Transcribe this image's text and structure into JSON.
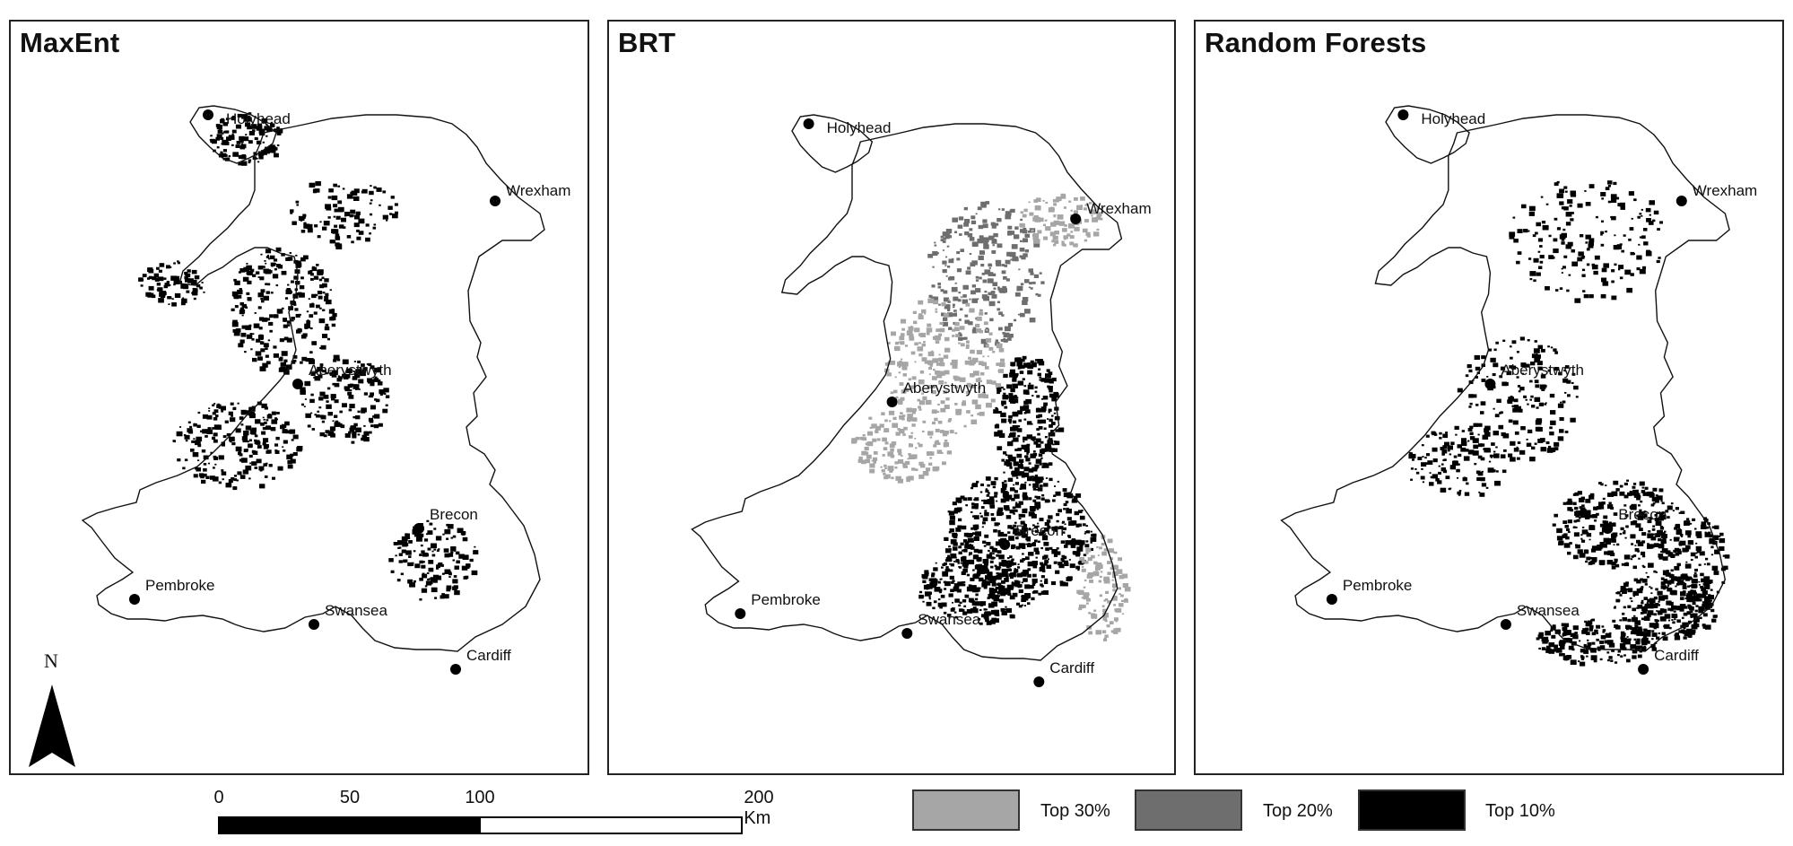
{
  "panels": [
    {
      "title": "MaxEnt",
      "model": "maxent"
    },
    {
      "title": "BRT",
      "model": "brt"
    },
    {
      "title": "Random Forests",
      "model": "rf"
    }
  ],
  "towns": [
    "Holyhead",
    "Wrexham",
    "Aberystwyth",
    "Brecon",
    "Pembroke",
    "Swansea",
    "Cardiff"
  ],
  "north_arrow": {
    "label": "N"
  },
  "scale_bar": {
    "ticks": [
      "0",
      "50",
      "100",
      "200 Km"
    ]
  },
  "legend": [
    {
      "label": "Top 30%",
      "color": "#a6a6a6"
    },
    {
      "label": "Top 20%",
      "color": "#6e6e6e"
    },
    {
      "label": "Top 10%",
      "color": "#000000"
    }
  ]
}
